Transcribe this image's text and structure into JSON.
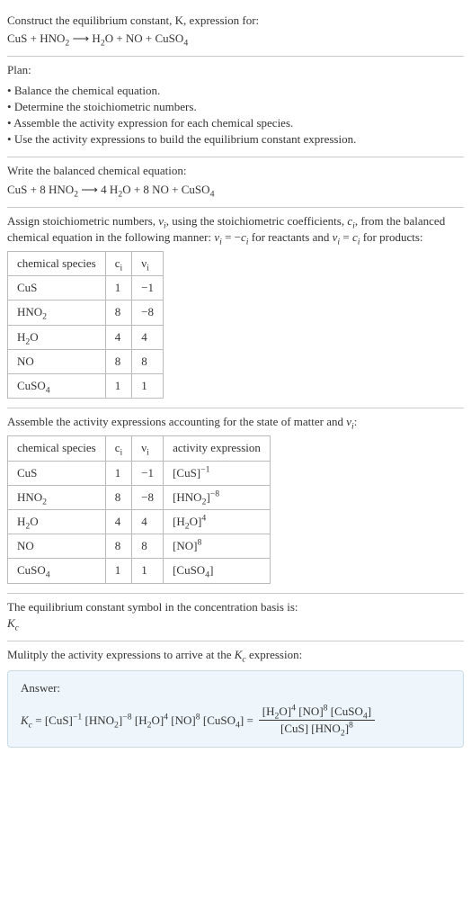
{
  "header": {
    "prompt": "Construct the equilibrium constant, K, expression for:",
    "equation_html": "CuS + HNO<sub>2</sub> ⟶ H<sub>2</sub>O + NO + CuSO<sub>4</sub>"
  },
  "plan": {
    "title": "Plan:",
    "items": [
      "Balance the chemical equation.",
      "Determine the stoichiometric numbers.",
      "Assemble the activity expression for each chemical species.",
      "Use the activity expressions to build the equilibrium constant expression."
    ]
  },
  "balanced": {
    "prompt": "Write the balanced chemical equation:",
    "equation_html": "CuS + 8 HNO<sub>2</sub> ⟶ 4 H<sub>2</sub>O + 8 NO + CuSO<sub>4</sub>"
  },
  "stoich": {
    "prompt_html": "Assign stoichiometric numbers, <span class='ital'>ν<sub>i</sub></span>, using the stoichiometric coefficients, <span class='ital'>c<sub>i</sub></span>, from the balanced chemical equation in the following manner: <span class='ital'>ν<sub>i</sub></span> = −<span class='ital'>c<sub>i</sub></span> for reactants and <span class='ital'>ν<sub>i</sub></span> = <span class='ital'>c<sub>i</sub></span> for products:",
    "cols": [
      "chemical species",
      "c<sub>i</sub>",
      "ν<sub>i</sub>"
    ],
    "rows": [
      [
        "CuS",
        "1",
        "−1"
      ],
      [
        "HNO<sub>2</sub>",
        "8",
        "−8"
      ],
      [
        "H<sub>2</sub>O",
        "4",
        "4"
      ],
      [
        "NO",
        "8",
        "8"
      ],
      [
        "CuSO<sub>4</sub>",
        "1",
        "1"
      ]
    ],
    "col_widths": [
      "120px",
      "34px",
      "34px"
    ]
  },
  "activity": {
    "prompt_html": "Assemble the activity expressions accounting for the state of matter and <span class='ital'>ν<sub>i</sub></span>:",
    "cols": [
      "chemical species",
      "c<sub>i</sub>",
      "ν<sub>i</sub>",
      "activity expression"
    ],
    "rows": [
      [
        "CuS",
        "1",
        "−1",
        "[CuS]<sup>−1</sup>"
      ],
      [
        "HNO<sub>2</sub>",
        "8",
        "−8",
        "[HNO<sub>2</sub>]<sup>−8</sup>"
      ],
      [
        "H<sub>2</sub>O",
        "4",
        "4",
        "[H<sub>2</sub>O]<sup>4</sup>"
      ],
      [
        "NO",
        "8",
        "8",
        "[NO]<sup>8</sup>"
      ],
      [
        "CuSO<sub>4</sub>",
        "1",
        "1",
        "[CuSO<sub>4</sub>]"
      ]
    ],
    "col_widths": [
      "120px",
      "34px",
      "34px",
      "130px"
    ]
  },
  "symbol": {
    "line1": "The equilibrium constant symbol in the concentration basis is:",
    "line2_html": "<span class='ital'>K<sub>c</sub></span>"
  },
  "final": {
    "prompt_html": "Mulitply the activity expressions to arrive at the <span class='ital'>K<sub>c</sub></span> expression:",
    "answer_label": "Answer:",
    "lhs_html": "<span class='ital'>K<sub>c</sub></span> = [CuS]<sup>−1</sup> [HNO<sub>2</sub>]<sup>−8</sup> [H<sub>2</sub>O]<sup>4</sup> [NO]<sup>8</sup> [CuSO<sub>4</sub>] =",
    "frac_num_html": "[H<sub>2</sub>O]<sup>4</sup> [NO]<sup>8</sup> [CuSO<sub>4</sub>]",
    "frac_den_html": "[CuS] [HNO<sub>2</sub>]<sup>8</sup>"
  },
  "style": {
    "border_color": "#ccc",
    "table_border_color": "#bbb",
    "answer_bg": "#eef6fb",
    "answer_border": "#c8dce8",
    "text_color": "#333",
    "font_size_pt": 10
  }
}
